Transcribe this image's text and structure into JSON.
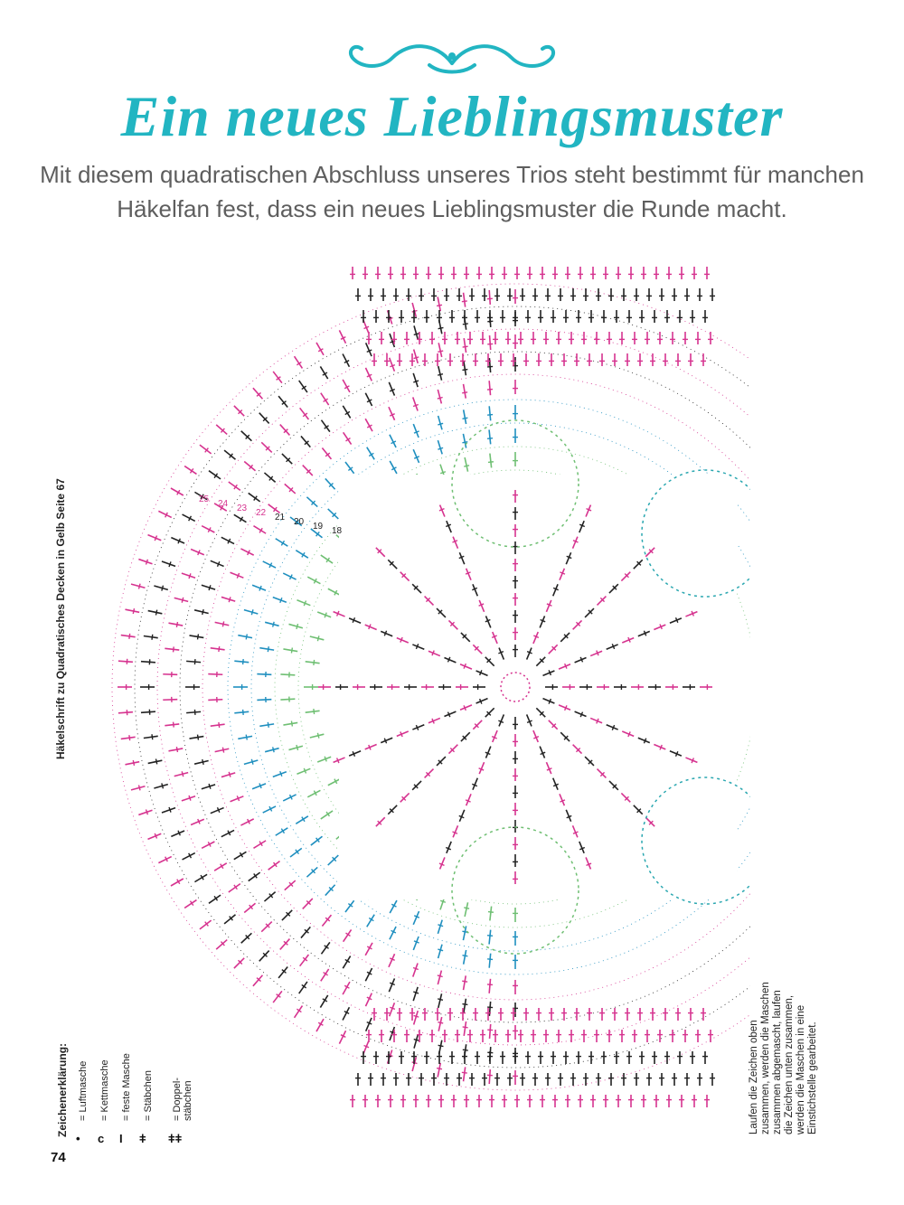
{
  "header": {
    "title": "Ein neues Lieblingsmuster",
    "subtitle": "Mit diesem quadratischen Abschluss unseres Trios steht bestimmt für manchen Häkelfan fest, dass ein neues Lieblingsmuster die Runde macht."
  },
  "diagram": {
    "caption": "Häkelschrift zu Quadratisches Decken in Gelb Seite 67",
    "colors": {
      "pink": "#d6338f",
      "black": "#222222",
      "blue": "#1f8fbf",
      "green": "#6fbf73",
      "teal": "#2aa7b0",
      "cyan": "#3cc3d2"
    },
    "round_labels": [
      "25",
      "24",
      "23",
      "22",
      "21",
      "20",
      "19",
      "18"
    ]
  },
  "legend": {
    "title": "Zeichenerklärung:",
    "items": [
      {
        "symbol": "•",
        "label": "= Luftmasche"
      },
      {
        "symbol": "c",
        "label": "= Kettmasche"
      },
      {
        "symbol": "I",
        "label": "= feste Masche"
      },
      {
        "symbol": "ǂ",
        "label": "= Stäbchen"
      },
      {
        "symbol": "ǂǂ",
        "label": "= Doppel-stäbchen"
      }
    ]
  },
  "note": {
    "text": "Laufen die Zeichen oben zusammen, werden die Maschen zusammen abgemascht, laufen die Zeichen unten zusammen, werden die Maschen in eine Einstichstelle gearbeitet."
  },
  "page": {
    "number": "74"
  }
}
